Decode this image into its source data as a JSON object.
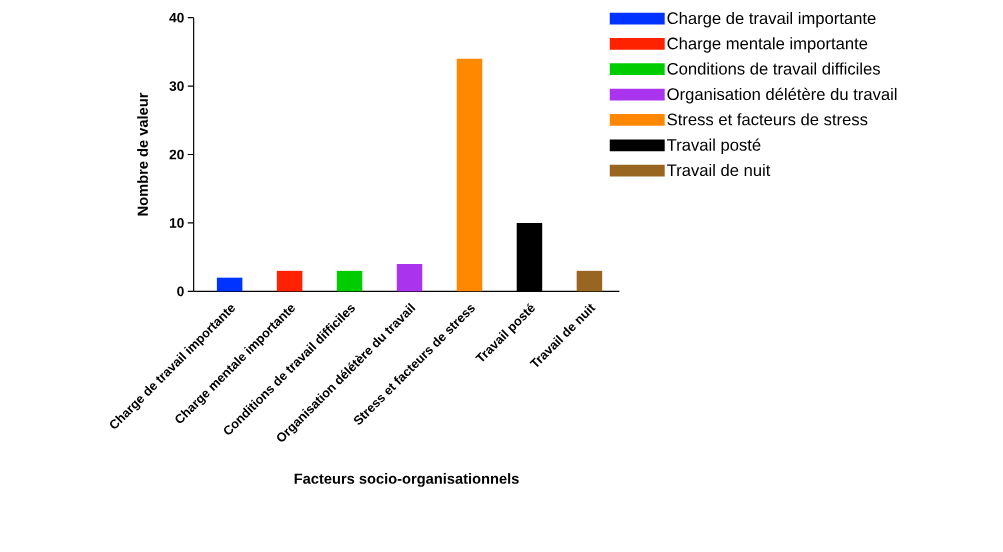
{
  "chart_data": {
    "type": "bar",
    "xlabel": "Facteurs socio-organisationnels",
    "ylabel": "Nombre de valeur",
    "categories": [
      "Charge de travail importante",
      "Charge mentale importante",
      "Conditions de travail difficiles",
      "Organisation délétère du travail",
      "Stress et facteurs de stress",
      "Travail posté",
      "Travail de nuit"
    ],
    "series": [
      {
        "name": "Charge de travail importante",
        "color": "#0033ff",
        "values": [
          2,
          null,
          null,
          null,
          null,
          null,
          null
        ]
      },
      {
        "name": "Charge mentale importante",
        "color": "#ff2200",
        "values": [
          null,
          3,
          null,
          null,
          null,
          null,
          null
        ]
      },
      {
        "name": "Conditions de travail difficiles",
        "color": "#00cc00",
        "values": [
          null,
          null,
          3,
          null,
          null,
          null,
          null
        ]
      },
      {
        "name": "Organisation délétère du travail",
        "color": "#aa33ee",
        "values": [
          null,
          null,
          null,
          4,
          null,
          null,
          null
        ]
      },
      {
        "name": "Stress et facteurs de stress",
        "color": "#ff8800",
        "values": [
          null,
          null,
          null,
          null,
          34,
          null,
          null
        ]
      },
      {
        "name": "Travail posté",
        "color": "#000000",
        "values": [
          null,
          null,
          null,
          null,
          null,
          10,
          null
        ]
      },
      {
        "name": "Travail de nuit",
        "color": "#996622",
        "values": [
          null,
          null,
          null,
          null,
          null,
          null,
          3
        ]
      }
    ],
    "ylim": [
      0,
      40
    ],
    "yticks": [
      0,
      10,
      20,
      30,
      40
    ],
    "legend": "right"
  }
}
